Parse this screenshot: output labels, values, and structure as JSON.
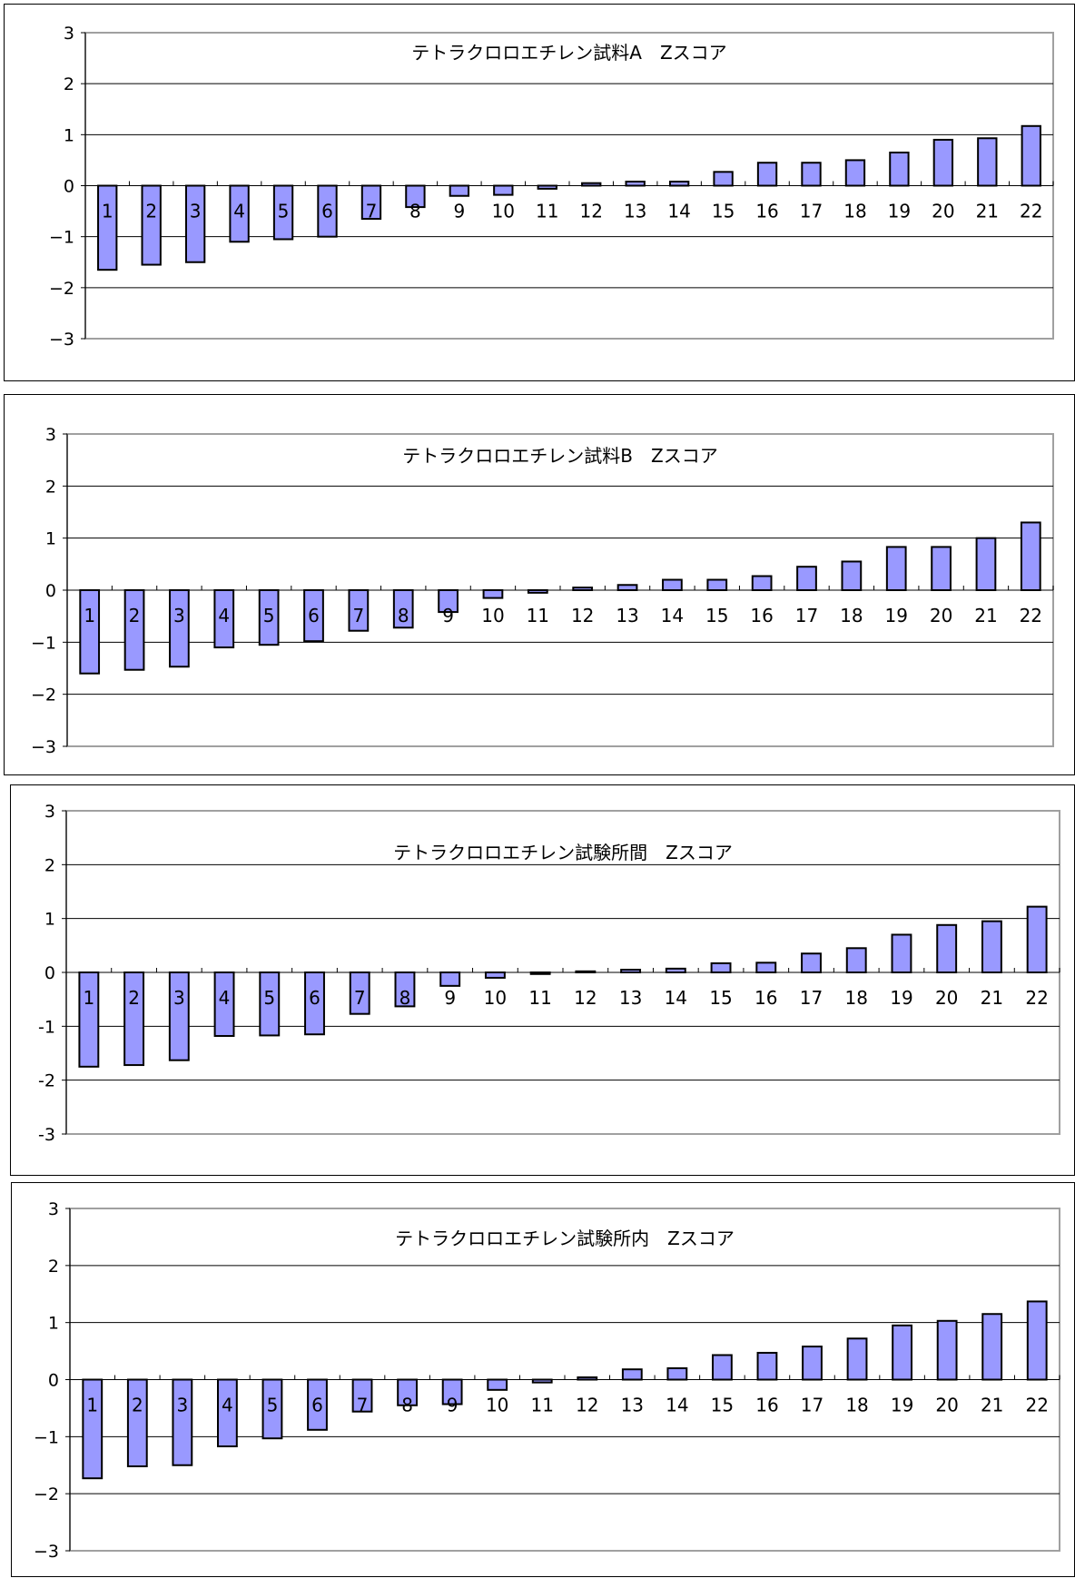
{
  "chart_data": [
    {
      "type": "bar",
      "title": "テトラクロロエチレン試料A　Zスコア",
      "categories": [
        "1",
        "2",
        "3",
        "4",
        "5",
        "6",
        "7",
        "8",
        "9",
        "10",
        "11",
        "12",
        "13",
        "14",
        "15",
        "16",
        "17",
        "18",
        "19",
        "20",
        "21",
        "22"
      ],
      "values": [
        -1.65,
        -1.55,
        -1.5,
        -1.1,
        -1.05,
        -1.0,
        -0.65,
        -0.42,
        -0.2,
        -0.18,
        -0.06,
        0.05,
        0.08,
        0.08,
        0.27,
        0.45,
        0.45,
        0.5,
        0.65,
        0.9,
        0.93,
        1.17
      ],
      "ylim": [
        -3,
        3
      ],
      "yticks": [
        "3",
        "2",
        "1",
        "0",
        "−1",
        "−2",
        "−3"
      ],
      "legend": "none"
    },
    {
      "type": "bar",
      "title": "テトラクロロエチレン試料B　Zスコア",
      "categories": [
        "1",
        "2",
        "3",
        "4",
        "5",
        "6",
        "7",
        "8",
        "9",
        "10",
        "11",
        "12",
        "13",
        "14",
        "15",
        "16",
        "17",
        "18",
        "19",
        "20",
        "21",
        "22"
      ],
      "values": [
        -1.6,
        -1.53,
        -1.47,
        -1.1,
        -1.05,
        -0.98,
        -0.78,
        -0.72,
        -0.42,
        -0.15,
        -0.05,
        0.05,
        0.1,
        0.2,
        0.2,
        0.27,
        0.45,
        0.55,
        0.83,
        0.83,
        1.0,
        1.3
      ],
      "ylim": [
        -3,
        3
      ],
      "yticks": [
        "3",
        "2",
        "1",
        "0",
        "−1",
        "−2",
        "−3"
      ],
      "legend": "none"
    },
    {
      "type": "bar",
      "title": "テトラクロロエチレン試験所間　Zスコア",
      "categories": [
        "1",
        "2",
        "3",
        "4",
        "5",
        "6",
        "7",
        "8",
        "9",
        "10",
        "11",
        "12",
        "13",
        "14",
        "15",
        "16",
        "17",
        "18",
        "19",
        "20",
        "21",
        "22"
      ],
      "values": [
        -1.75,
        -1.72,
        -1.63,
        -1.18,
        -1.17,
        -1.15,
        -0.77,
        -0.63,
        -0.25,
        -0.1,
        -0.03,
        0.02,
        0.05,
        0.07,
        0.17,
        0.18,
        0.35,
        0.45,
        0.7,
        0.88,
        0.95,
        1.22
      ],
      "ylim": [
        -3,
        3
      ],
      "yticks": [
        "3",
        "2",
        "1",
        "0",
        "-1",
        "-2",
        "-3"
      ],
      "legend": "none"
    },
    {
      "type": "bar",
      "title": "テトラクロロエチレン試験所内　Zスコア",
      "categories": [
        "1",
        "2",
        "3",
        "4",
        "5",
        "6",
        "7",
        "8",
        "9",
        "10",
        "11",
        "12",
        "13",
        "14",
        "15",
        "16",
        "17",
        "18",
        "19",
        "20",
        "21",
        "22"
      ],
      "values": [
        -1.73,
        -1.52,
        -1.5,
        -1.17,
        -1.03,
        -0.88,
        -0.56,
        -0.45,
        -0.43,
        -0.18,
        -0.05,
        0.04,
        0.18,
        0.2,
        0.43,
        0.47,
        0.58,
        0.72,
        0.95,
        1.03,
        1.15,
        1.37
      ],
      "ylim": [
        -3,
        3
      ],
      "yticks": [
        "3",
        "2",
        "1",
        "0",
        "−1",
        "−2",
        "−3"
      ],
      "legend": "none"
    }
  ]
}
